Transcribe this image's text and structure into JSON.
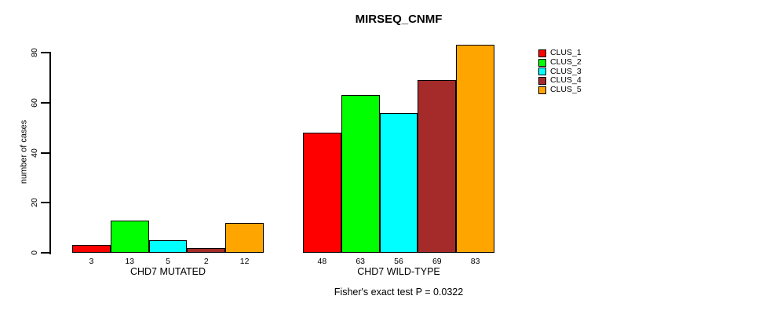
{
  "chart_data": {
    "type": "bar",
    "title": "MIRSEQ_CNMF",
    "ylabel": "number of cases",
    "caption": "Fisher's exact test P = 0.0322",
    "yticks": [
      0,
      20,
      40,
      60,
      80
    ],
    "ylim": [
      0,
      83
    ],
    "grid": false,
    "legend_position": "top-right",
    "series": [
      "CLUS_1",
      "CLUS_2",
      "CLUS_3",
      "CLUS_4",
      "CLUS_5"
    ],
    "colors": [
      "#ff0000",
      "#00ff00",
      "#00ffff",
      "#a52a2a",
      "#ffa500"
    ],
    "groups": [
      {
        "label": "CHD7 MUTATED",
        "values": [
          3,
          13,
          5,
          2,
          12
        ]
      },
      {
        "label": "CHD7 WILD-TYPE",
        "values": [
          48,
          63,
          56,
          69,
          83
        ]
      }
    ]
  }
}
